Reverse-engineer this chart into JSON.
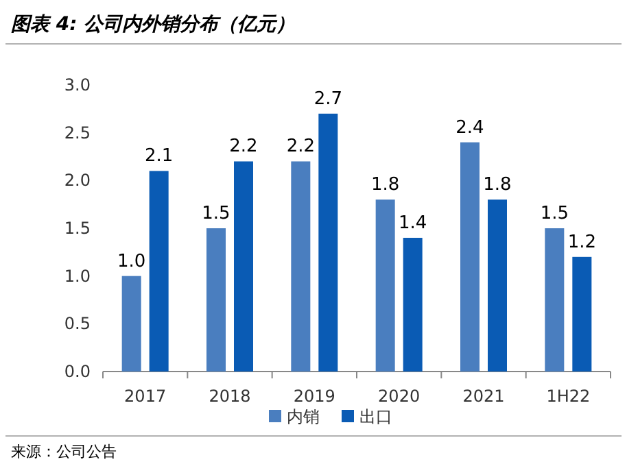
{
  "chart_data": {
    "type": "bar",
    "title": "图表 4: 公司内外销分布（亿元）",
    "categories": [
      "2017",
      "2018",
      "2019",
      "2020",
      "2021",
      "1H22"
    ],
    "series": [
      {
        "name": "内销",
        "color": "#4a7ebf",
        "values": [
          1.0,
          1.5,
          2.2,
          1.8,
          2.4,
          1.5
        ],
        "value_labels": [
          "1.0",
          "1.5",
          "2.2",
          "1.8",
          "2.4",
          "1.5"
        ]
      },
      {
        "name": "出口",
        "color": "#0a5bb4",
        "values": [
          2.1,
          2.2,
          2.7,
          1.4,
          1.8,
          1.2
        ],
        "value_labels": [
          "2.1",
          "2.2",
          "2.7",
          "1.4",
          "1.8",
          "1.2"
        ]
      }
    ],
    "ylim": [
      0,
      3
    ],
    "yticks": [
      {
        "value": 0,
        "label": "0.0"
      },
      0.5,
      {
        "value": 1,
        "label": "1.0"
      },
      1.5,
      {
        "value": 2,
        "label": "2.0"
      },
      2.5,
      {
        "value": 3,
        "label": "3.0"
      }
    ],
    "legend": "bottom",
    "grid": false,
    "annotations": [
      "来源：公司公告"
    ]
  }
}
